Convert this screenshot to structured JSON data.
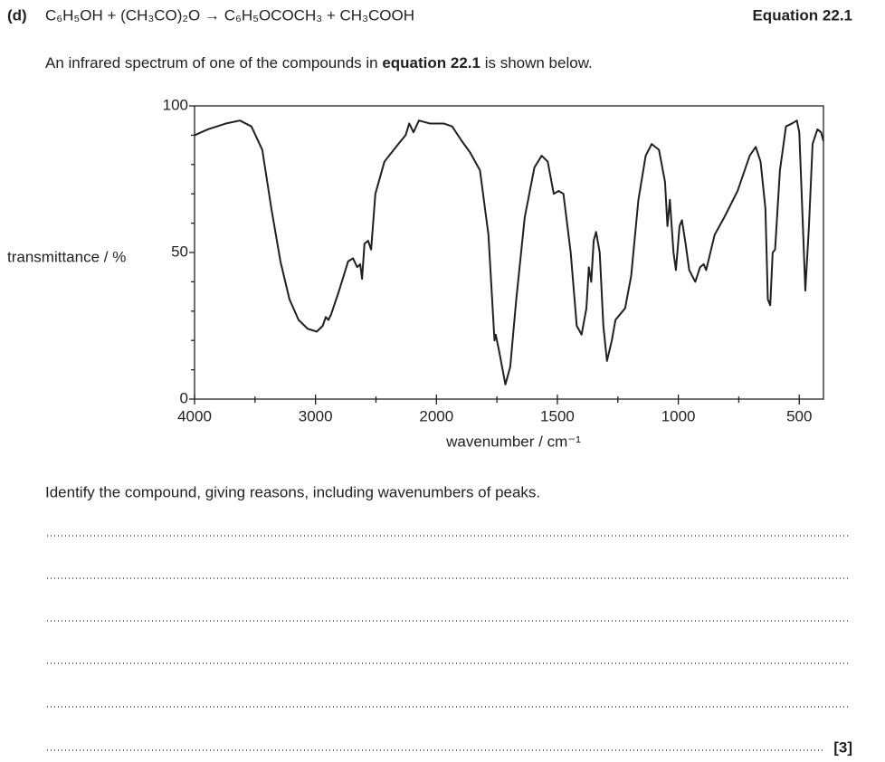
{
  "question": {
    "label": "(d)",
    "equation": "C₆H₅OH + (CH₃CO)₂O → C₆H₅OCOCH₃ + CH₃COOH",
    "equation_label": "Equation 22.1"
  },
  "intro": [
    "An infrared spectrum of one of the compounds in ",
    "equation 22.1",
    " is shown below."
  ],
  "chart_data": {
    "type": "line",
    "ylabel": "transmittance / %",
    "xlabel": "wavenumber / cm⁻¹",
    "color": "#231f20",
    "xlim": [
      4000,
      400
    ],
    "ylim": [
      0,
      100
    ],
    "xticks": [
      4000,
      3000,
      2000,
      1500,
      1000,
      500
    ],
    "xminorticks": [
      3500,
      2500,
      1750,
      1250,
      750
    ],
    "yticks": [
      0,
      50,
      100
    ],
    "yminorticks": [
      10,
      20,
      30,
      40,
      60,
      70,
      80,
      90
    ],
    "xscale": {
      "break": 2000,
      "factor": 2
    },
    "x": [
      4000,
      3890,
      3740,
      3625,
      3530,
      3440,
      3365,
      3290,
      3215,
      3140,
      3065,
      2990,
      2940,
      2915,
      2893,
      2870,
      2805,
      2730,
      2690,
      2655,
      2630,
      2615,
      2595,
      2565,
      2540,
      2505,
      2430,
      2315,
      2255,
      2225,
      2190,
      2145,
      2055,
      1970,
      1935,
      1895,
      1860,
      1820,
      1785,
      1760,
      1755,
      1740,
      1715,
      1695,
      1670,
      1635,
      1595,
      1565,
      1540,
      1515,
      1495,
      1475,
      1445,
      1420,
      1400,
      1380,
      1370,
      1360,
      1350,
      1340,
      1325,
      1310,
      1295,
      1275,
      1260,
      1220,
      1195,
      1165,
      1135,
      1110,
      1080,
      1055,
      1045,
      1035,
      1020,
      1010,
      995,
      985,
      970,
      955,
      930,
      910,
      895,
      885,
      850,
      810,
      755,
      705,
      680,
      660,
      640,
      630,
      620,
      610,
      600,
      580,
      555,
      530,
      510,
      500,
      485,
      475,
      460,
      445,
      425,
      410,
      400
    ],
    "values": [
      90,
      92,
      94,
      95,
      93,
      85,
      65,
      47,
      34,
      27,
      24,
      23,
      25,
      28,
      27,
      29,
      37,
      47,
      48,
      45,
      46,
      41,
      53,
      54,
      51,
      70,
      81,
      87,
      90,
      94,
      91,
      95,
      94,
      94,
      93,
      88,
      84,
      78,
      56,
      20,
      22,
      16,
      5,
      11,
      34,
      62,
      79,
      83,
      81,
      70,
      71,
      70,
      50,
      25,
      22,
      31,
      45,
      40,
      54,
      57,
      50,
      25,
      13,
      20,
      27,
      31,
      42,
      68,
      83,
      87,
      85,
      74,
      59,
      68,
      50,
      44,
      59,
      61,
      53,
      44,
      40,
      45,
      46,
      44,
      56,
      62,
      71,
      83,
      86,
      81,
      65,
      34,
      32,
      50,
      51,
      78,
      93,
      94,
      95,
      91,
      59,
      37,
      59,
      87,
      92,
      91,
      88
    ]
  },
  "prompt": "Identify the compound, giving reasons, including wavenumbers of peaks.",
  "marks": "[3]"
}
